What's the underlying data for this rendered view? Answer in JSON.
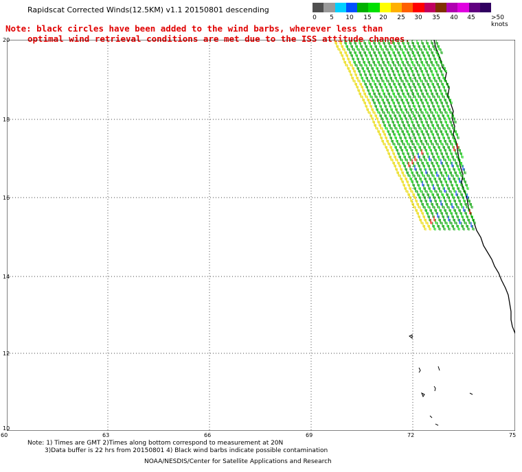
{
  "header": {
    "title": "Rapidscat Corrected Winds(12.5KM) v1.1 20150801 descending",
    "note_line1": "Note: black circles have been added to the wind barbs, wherever less than",
    "note_line2": "optimal wind retrieval conditions are met due to the ISS attitude changes."
  },
  "color_scale": {
    "labels": [
      "0",
      "5",
      "10",
      "15",
      "20",
      "25",
      "30",
      "35",
      "40",
      "45",
      ">50 knots"
    ],
    "colors": [
      "#505050",
      "#9a9a9a",
      "#00d0ff",
      "#0050ff",
      "#00b000",
      "#00e000",
      "#ffff00",
      "#ffb000",
      "#ff6000",
      "#ff0000",
      "#c00060",
      "#803000",
      "#b000b0",
      "#e000e0",
      "#600080",
      "#300060"
    ]
  },
  "map": {
    "lon_labels": [
      "60",
      "63",
      "66",
      "69",
      "72",
      "75"
    ],
    "lat_labels": [
      "20",
      "18",
      "16",
      "14",
      "12",
      "10"
    ]
  },
  "footer": {
    "line1": "Note: 1) Times are GMT 2)Times along bottom correspond to measurement at 20N",
    "line2": "3)Data buffer is 22 hrs from 20150801 4) Black wind barbs indicate possible contamination",
    "line3": "NOAA/NESDIS/Center for Satellite Applications and Research"
  }
}
